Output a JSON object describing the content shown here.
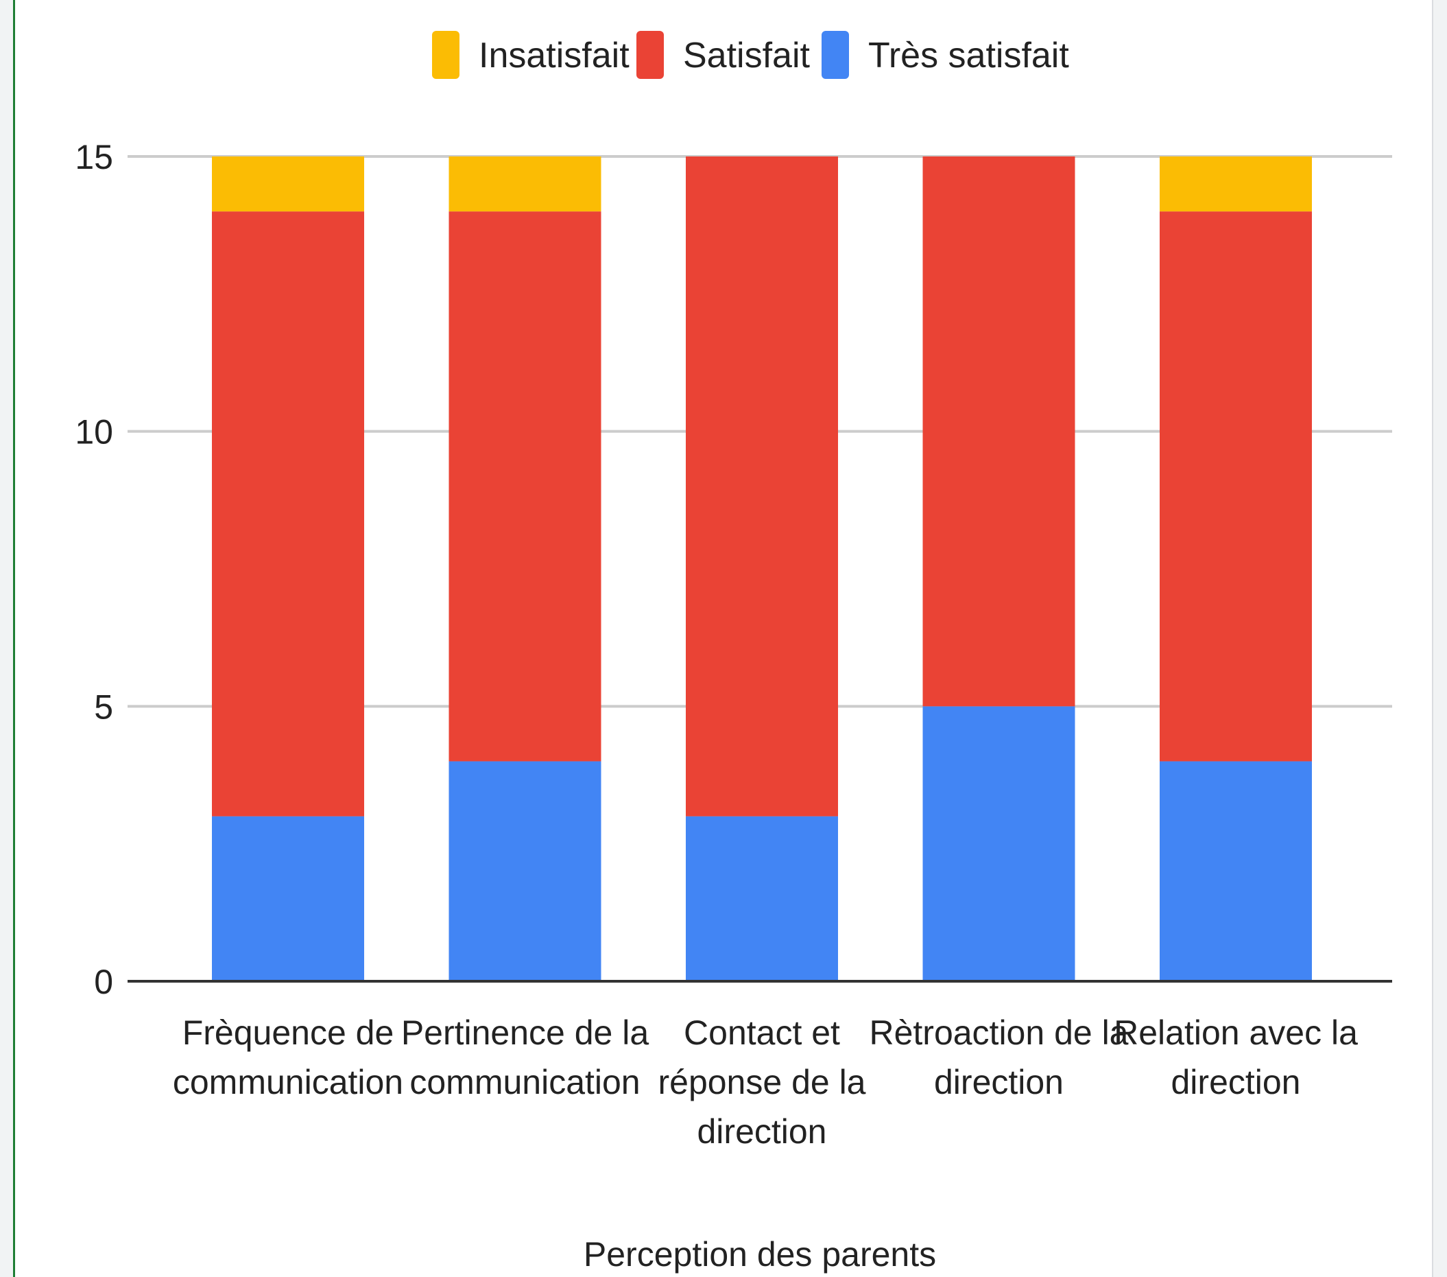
{
  "chart_data": {
    "type": "bar",
    "stacked": true,
    "title": "",
    "xlabel": "Perception des parents",
    "ylabel": "",
    "ylim": [
      0,
      15
    ],
    "yticks": [
      0,
      5,
      10,
      15
    ],
    "grid": true,
    "legend_position": "top",
    "categories": [
      [
        "Frèquence de",
        "communication"
      ],
      [
        "Pertinence de la",
        "communication"
      ],
      [
        "Contact et",
        "réponse de la",
        "direction"
      ],
      [
        "Rètroaction de la",
        "direction"
      ],
      [
        "Relation avec la",
        "direction"
      ]
    ],
    "series": [
      {
        "name": "Très satisfait",
        "color": "#4285f4",
        "values": [
          3,
          4,
          3,
          5,
          4
        ]
      },
      {
        "name": "Satisfait",
        "color": "#ea4335",
        "values": [
          11,
          10,
          12,
          10,
          10
        ]
      },
      {
        "name": "Insatisfait",
        "color": "#fbbc04",
        "values": [
          1,
          1,
          0,
          0,
          1
        ]
      }
    ],
    "legend_order": [
      "Insatisfait",
      "Satisfait",
      "Très satisfait"
    ]
  }
}
